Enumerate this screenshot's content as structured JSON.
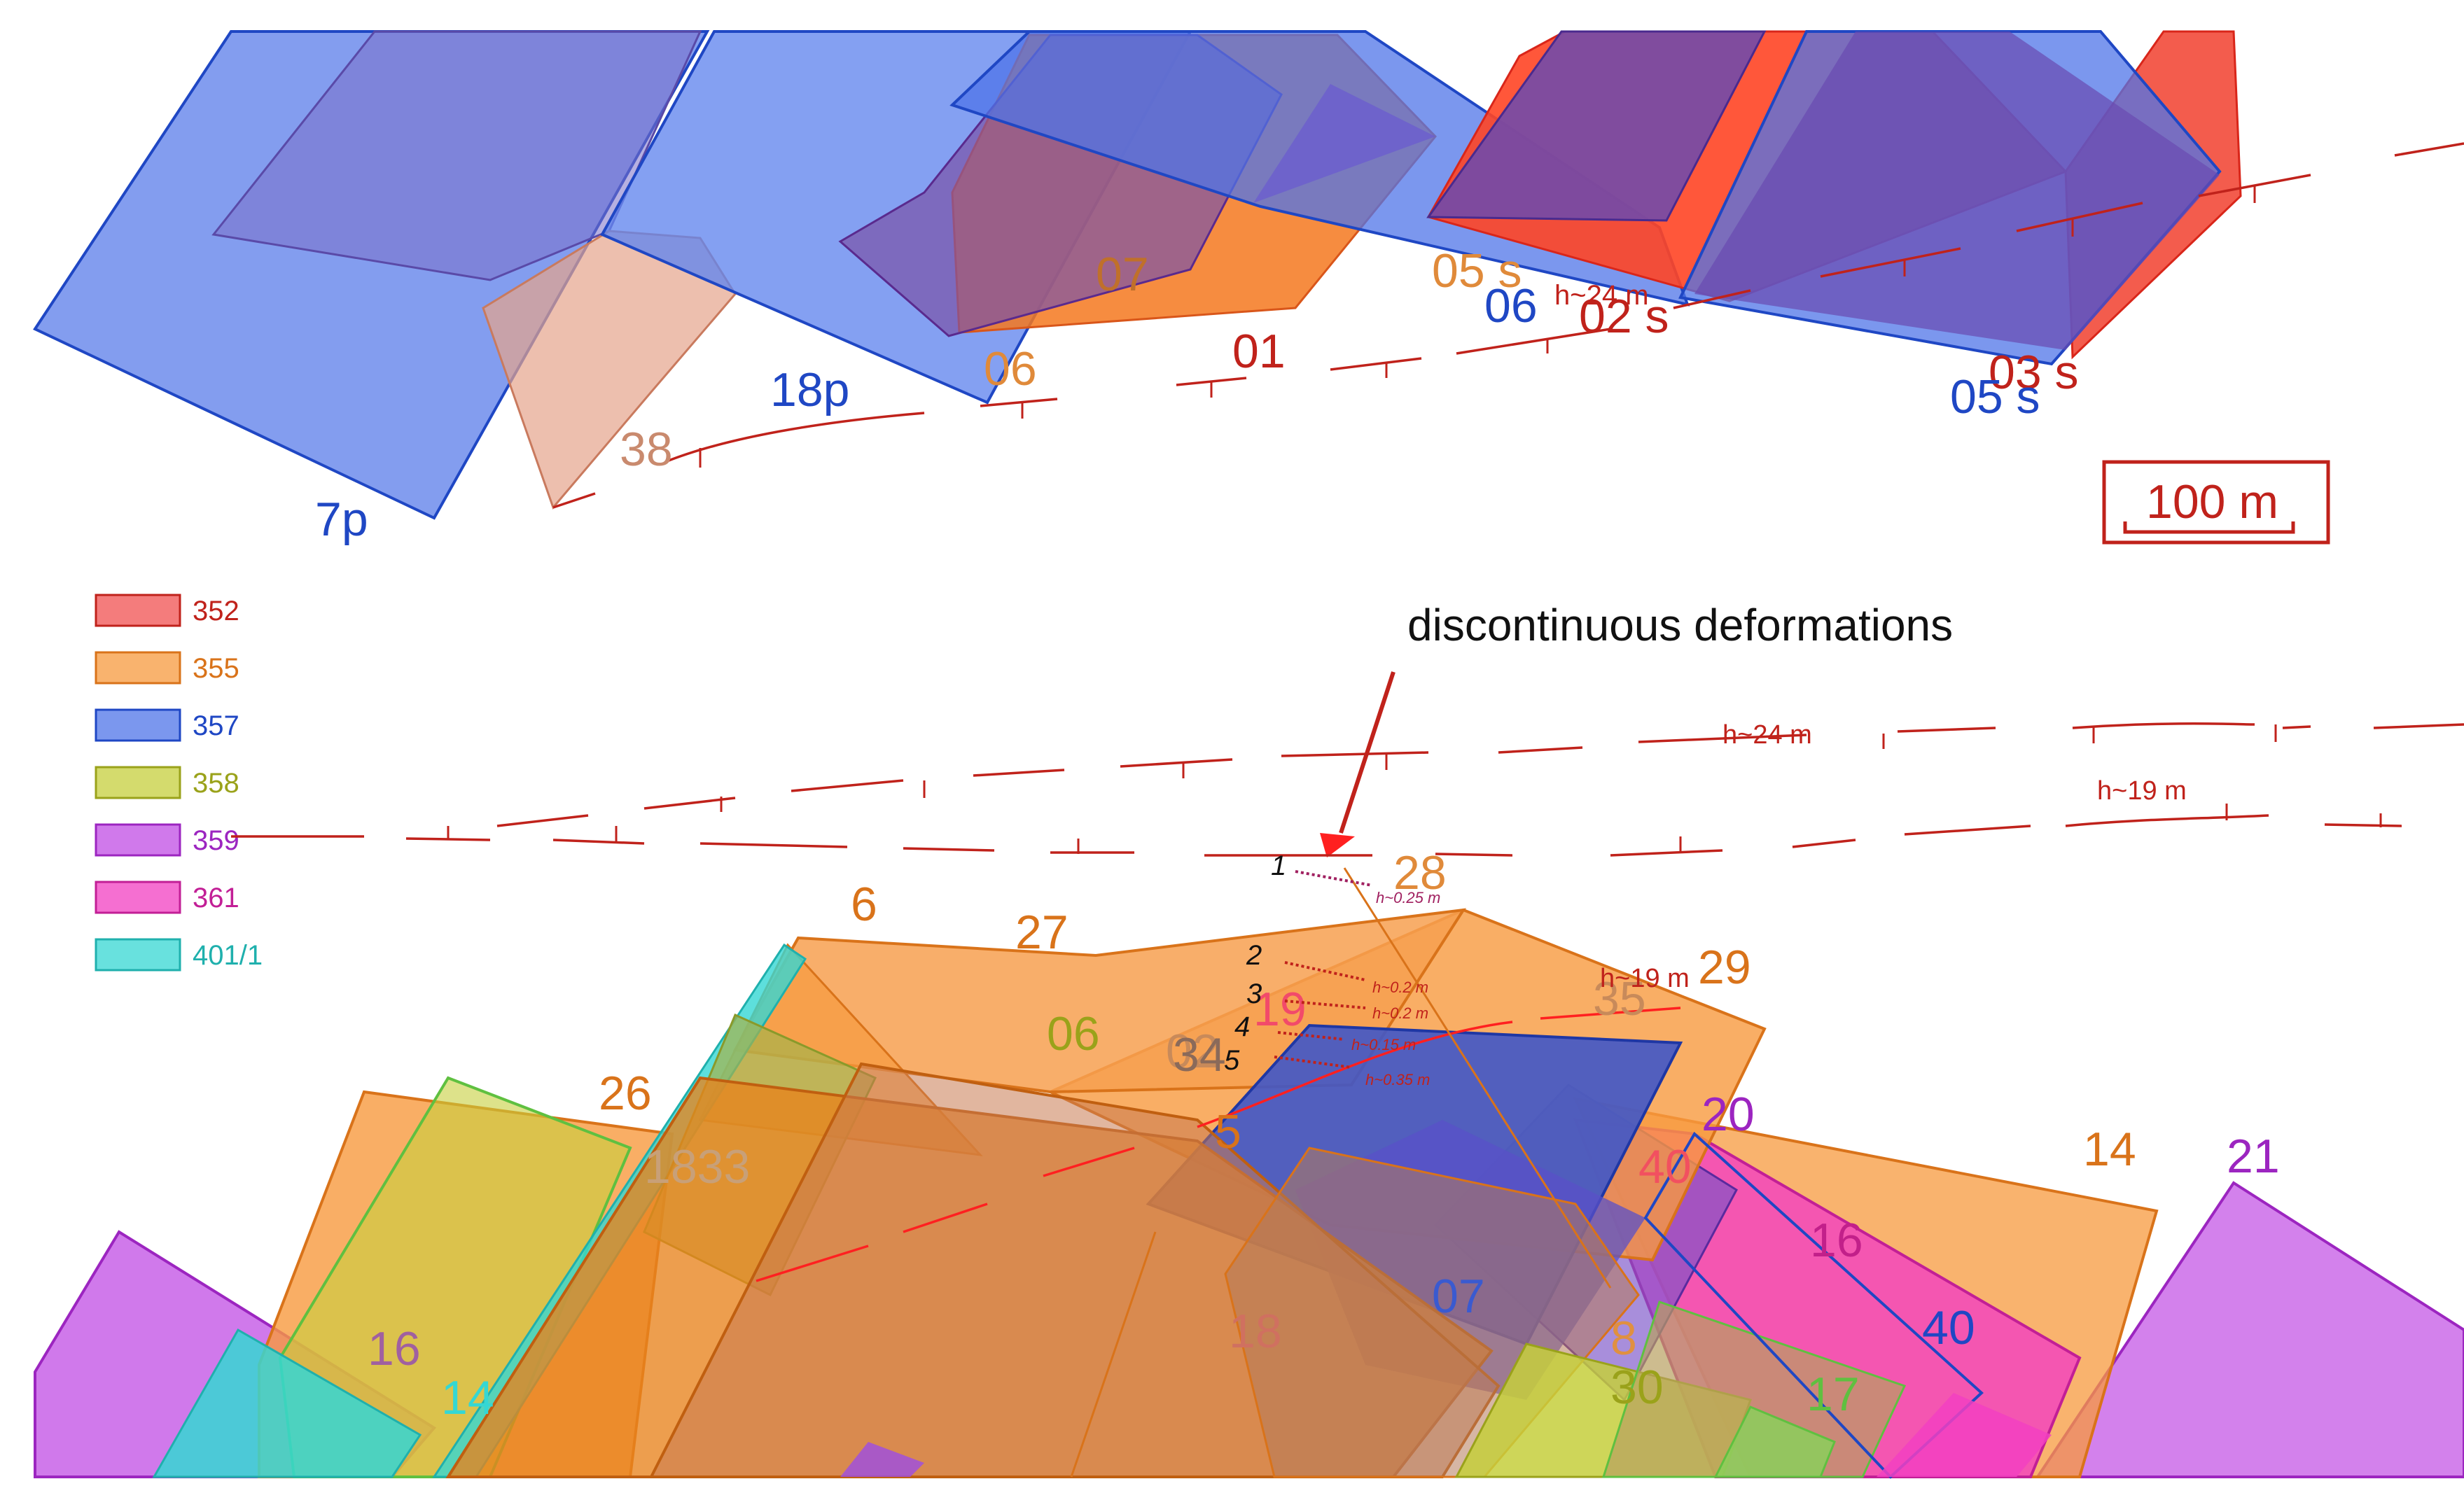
{
  "colors": {
    "c352": "#f05050",
    "c355": "#f79a3e",
    "c357": "#4f74e8",
    "c358": "#c6cf3c",
    "c359": "#c04ce4",
    "c361": "#f23fc2",
    "c401": "#35d7d3",
    "fault": "#c0221b"
  },
  "legend": [
    {
      "label": "352",
      "color": "#f05050",
      "text_color": "#c0221b"
    },
    {
      "label": "355",
      "color": "#f79a3e",
      "text_color": "#d9731a"
    },
    {
      "label": "357",
      "color": "#4f74e8",
      "text_color": "#1f47c4"
    },
    {
      "label": "358",
      "color": "#c6cf3c",
      "text_color": "#9aa21a"
    },
    {
      "label": "359",
      "color": "#c04ce4",
      "text_color": "#9c25c0"
    },
    {
      "label": "361",
      "color": "#f23fc2",
      "text_color": "#c21f96"
    },
    {
      "label": "401/1",
      "color": "#35d7d3",
      "text_color": "#1fb0ad"
    }
  ],
  "annotation": "discontinuous deformations",
  "scale_bar": "100 m",
  "top_labels": {
    "l7p": "7p",
    "l18p": "18p",
    "l38": "38",
    "l06a": "06",
    "l07": "07",
    "l01": "01",
    "l05s_a": "05 s",
    "l06b": "06",
    "h24_small": "h~24 m",
    "l02s": "02 s",
    "l03s": "03 s",
    "l05s_b": "05 s"
  },
  "bottom_labels": {
    "l6": "6",
    "l27": "27",
    "l28": "28",
    "l29": "29",
    "l26": "26",
    "l06": "06",
    "l02": "02",
    "l34": "34",
    "l5": "5",
    "l19": "19",
    "l35": "35",
    "l1833": "1833",
    "l20": "20",
    "l14": "14",
    "l21": "21",
    "l16a": "16",
    "l16b": "16",
    "l40a": "40",
    "l40b": "40",
    "l07": "07",
    "l18": "18",
    "l8": "8",
    "l30": "30",
    "l17": "17",
    "l14b": "14"
  },
  "fault_heights": {
    "h24": "h~24 m",
    "h19a": "h~19 m",
    "h19b": "h~19 m"
  },
  "cracks": [
    {
      "num": "1",
      "h": "h~0.25 m"
    },
    {
      "num": "2",
      "h": "h~0.2 m"
    },
    {
      "num": "3",
      "h": "h~0.2 m"
    },
    {
      "num": "4",
      "h": "h~0.15 m"
    },
    {
      "num": "5",
      "h": "h~0.35 m"
    }
  ]
}
